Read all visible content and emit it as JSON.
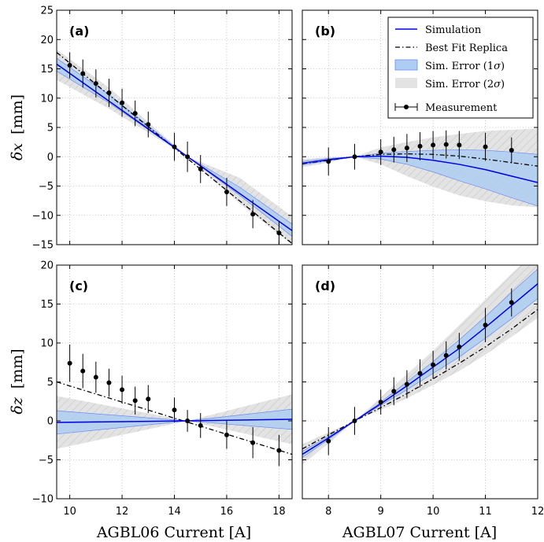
{
  "colors": {
    "simulation": "#0000e6",
    "band1": "#aecdf2",
    "band1_edge": "#6f8cf0",
    "band2": "#e3e3e3",
    "band2_hatch": "#b8b8b8",
    "replica": "#000000",
    "measurement": "#000000",
    "grid": "#9a9a9a"
  },
  "legend": {
    "simulation": "Simulation",
    "best_fit": "Best Fit Replica",
    "err1_prefix": "Sim. Error (1",
    "err1_symbol": "σ",
    "err1_suffix": ")",
    "err2_prefix": "Sim. Error (2",
    "err2_symbol": "σ",
    "err2_suffix": ")",
    "measurement": "Measurement"
  },
  "axes": {
    "x_left_label": "AGBL06 Current [A]",
    "x_right_label": "AGBL07 Current [A]",
    "y_top_symbol": "δx",
    "y_top_unit": "[mm]",
    "y_bottom_symbol": "δz",
    "y_bottom_unit": "[mm]"
  },
  "chart_data": [
    {
      "panel": "(a)",
      "type": "line",
      "grid": true,
      "xlim": [
        9.5,
        18.5
      ],
      "ylim": [
        -15,
        25
      ],
      "xticks": [
        10,
        12,
        14,
        16,
        18
      ],
      "yticks": [
        -15,
        -10,
        -5,
        0,
        5,
        10,
        15,
        20,
        25
      ],
      "show_xticklabels": false,
      "show_yticklabels": true,
      "simulation": {
        "x": [
          9.5,
          18.5
        ],
        "y": [
          15.8,
          -12.6
        ]
      },
      "best_fit": {
        "x": [
          9.5,
          18.5
        ],
        "y": [
          17.8,
          -14.8
        ]
      },
      "sigma1": {
        "x": [
          9.5,
          11.5,
          14.5,
          16.5,
          18.5
        ],
        "lower": [
          14.6,
          9.2,
          0,
          -6.6,
          -13.6
        ],
        "upper": [
          16.8,
          10.6,
          0,
          -5.2,
          -11.5
        ]
      },
      "sigma2": {
        "x": [
          9.5,
          11.5,
          14.5,
          16.5,
          18.5
        ],
        "lower": [
          13.1,
          8.2,
          0,
          -8.0,
          -15.0
        ],
        "upper": [
          18.3,
          11.8,
          0,
          -3.6,
          -10.2
        ]
      },
      "measurement": {
        "x": [
          10,
          10.5,
          11,
          11.5,
          12,
          12.5,
          13,
          14,
          14.5,
          15,
          16,
          17,
          18
        ],
        "y": [
          15.6,
          14.2,
          12.5,
          10.9,
          9.2,
          7.4,
          5.5,
          1.7,
          0,
          -2.1,
          -6.0,
          -9.8,
          -13.0
        ],
        "yerr": [
          2.2,
          2.4,
          2.4,
          2.4,
          2.4,
          2.2,
          2.2,
          2.4,
          2.6,
          2.4,
          2.4,
          2.4,
          2.0
        ]
      }
    },
    {
      "panel": "(b)",
      "type": "line",
      "grid": true,
      "xlim": [
        7.5,
        12
      ],
      "ylim": [
        -15,
        25
      ],
      "xticks": [
        8,
        9,
        10,
        11,
        12
      ],
      "yticks": [
        -15,
        -10,
        -5,
        0,
        5,
        10,
        15,
        20,
        25
      ],
      "show_xticklabels": false,
      "show_yticklabels": false,
      "simulation": {
        "x": [
          7.5,
          8,
          8.5,
          9,
          9.5,
          10,
          10.5,
          11,
          11.5,
          12
        ],
        "y": [
          -1.1,
          -0.5,
          0,
          0.1,
          -0.1,
          -0.6,
          -1.3,
          -2.2,
          -3.3,
          -4.4
        ]
      },
      "best_fit": {
        "x": [
          7.5,
          8,
          8.5,
          9,
          9.5,
          10,
          10.5,
          11,
          11.5,
          12
        ],
        "y": [
          -1.2,
          -0.6,
          0,
          0.4,
          0.5,
          0.4,
          0.1,
          -0.4,
          -1.0,
          -1.6
        ]
      },
      "sigma1": {
        "x": [
          7.5,
          8,
          8.5,
          9,
          9.5,
          10,
          10.5,
          11,
          11.5,
          12
        ],
        "lower": [
          -1.4,
          -0.7,
          0,
          -0.4,
          -1.3,
          -2.6,
          -4.1,
          -5.5,
          -7.0,
          -8.4
        ],
        "upper": [
          -0.8,
          -0.3,
          0,
          0.6,
          0.9,
          1.1,
          1.2,
          1.1,
          0.8,
          0.4
        ]
      },
      "sigma2": {
        "x": [
          7.5,
          8,
          8.5,
          9,
          9.5,
          10,
          10.5,
          11,
          11.5,
          12
        ],
        "lower": [
          -1.8,
          -1.0,
          0,
          -1.3,
          -3.3,
          -5.1,
          -6.6,
          -7.6,
          -8.3,
          -8.6
        ],
        "upper": [
          -0.4,
          -0.1,
          0,
          1.6,
          2.5,
          3.3,
          3.9,
          4.4,
          4.6,
          4.8
        ]
      },
      "measurement": {
        "x": [
          8,
          8.5,
          9,
          9.25,
          9.5,
          9.75,
          10,
          10.25,
          10.5,
          11,
          11.5
        ],
        "y": [
          -0.8,
          0,
          0.8,
          1.2,
          1.5,
          1.8,
          2.0,
          2.1,
          2.0,
          1.7,
          1.1
        ],
        "yerr": [
          2.4,
          2.2,
          2.2,
          2.2,
          2.4,
          2.4,
          2.4,
          2.4,
          2.4,
          2.4,
          2.2
        ]
      }
    },
    {
      "panel": "(c)",
      "type": "line",
      "grid": true,
      "xlim": [
        9.5,
        18.5
      ],
      "ylim": [
        -10,
        20
      ],
      "xticks": [
        10,
        12,
        14,
        16,
        18
      ],
      "yticks": [
        -10,
        -5,
        0,
        5,
        10,
        15,
        20
      ],
      "show_xticklabels": true,
      "show_yticklabels": true,
      "simulation": {
        "x": [
          9.5,
          14.5,
          18.5
        ],
        "y": [
          -0.2,
          0,
          0.2
        ]
      },
      "best_fit": {
        "x": [
          9.5,
          18.5
        ],
        "y": [
          5.0,
          -4.3
        ]
      },
      "sigma1": {
        "x": [
          9.5,
          14.5,
          18.5
        ],
        "lower": [
          -1.7,
          0,
          -1.1
        ],
        "upper": [
          1.3,
          0,
          1.5
        ]
      },
      "sigma2": {
        "x": [
          9.5,
          14.5,
          18.5
        ],
        "lower": [
          -3.6,
          0,
          -3.0
        ],
        "upper": [
          3.2,
          0,
          3.4
        ]
      },
      "measurement": {
        "x": [
          10,
          10.5,
          11,
          11.5,
          12,
          12.5,
          13,
          14,
          14.5,
          15,
          16,
          17,
          18
        ],
        "y": [
          7.4,
          6.4,
          5.6,
          4.9,
          4.0,
          2.6,
          2.8,
          1.4,
          0,
          -0.6,
          -1.8,
          -2.8,
          -3.8
        ],
        "yerr": [
          2.4,
          2.2,
          2.0,
          1.8,
          1.8,
          1.8,
          1.8,
          1.6,
          1.4,
          1.6,
          1.8,
          2.0,
          2.0
        ]
      }
    },
    {
      "panel": "(d)",
      "type": "line",
      "grid": true,
      "xlim": [
        7.5,
        12
      ],
      "ylim": [
        -10,
        20
      ],
      "xticks": [
        8,
        9,
        10,
        11,
        12
      ],
      "yticks": [
        -10,
        -5,
        0,
        5,
        10,
        15,
        20
      ],
      "show_xticklabels": true,
      "show_yticklabels": false,
      "simulation": {
        "x": [
          7.5,
          8,
          8.5,
          9,
          9.5,
          10,
          10.5,
          11,
          11.5,
          12
        ],
        "y": [
          -4.3,
          -2.2,
          0,
          2.2,
          4.5,
          6.9,
          9.3,
          12.0,
          14.8,
          17.6
        ]
      },
      "best_fit": {
        "x": [
          7.5,
          8,
          8.5,
          9,
          9.5,
          10,
          10.5,
          11,
          11.5,
          12
        ],
        "y": [
          -3.6,
          -1.8,
          0,
          1.7,
          3.5,
          5.4,
          7.4,
          9.5,
          11.8,
          14.3
        ]
      },
      "sigma1": {
        "x": [
          7.5,
          8,
          8.5,
          9,
          9.5,
          10,
          10.5,
          11,
          11.5,
          12
        ],
        "lower": [
          -4.7,
          -2.4,
          0,
          2.0,
          4.0,
          6.1,
          8.2,
          10.6,
          13.1,
          15.7
        ],
        "upper": [
          -3.9,
          -2.0,
          0,
          2.4,
          5.0,
          7.6,
          10.4,
          13.4,
          16.5,
          19.5
        ]
      },
      "sigma2": {
        "x": [
          7.5,
          8,
          8.5,
          9,
          9.5,
          10,
          10.5,
          11,
          11.5,
          12
        ],
        "lower": [
          -5.6,
          -2.9,
          0,
          1.4,
          2.9,
          4.6,
          6.4,
          8.5,
          10.8,
          13.2
        ],
        "upper": [
          -3.0,
          -1.5,
          0,
          3.0,
          6.0,
          9.0,
          12.3,
          15.6,
          18.9,
          22.0
        ]
      },
      "measurement": {
        "x": [
          8,
          8.5,
          9,
          9.25,
          9.5,
          9.75,
          10,
          10.25,
          10.5,
          11,
          11.5
        ],
        "y": [
          -2.6,
          0,
          2.4,
          3.8,
          4.7,
          6.1,
          7.2,
          8.4,
          9.5,
          12.3,
          15.2
        ],
        "yerr": [
          1.8,
          1.8,
          1.6,
          1.8,
          1.8,
          1.8,
          1.8,
          1.8,
          1.8,
          2.2,
          1.8
        ]
      }
    }
  ]
}
